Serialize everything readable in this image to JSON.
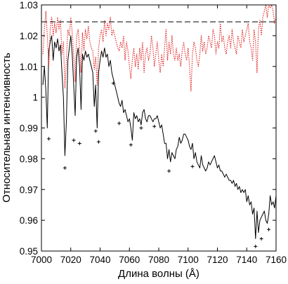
{
  "chart_data": {
    "type": "line",
    "xlabel": "Длина волны (Å)",
    "ylabel": "Относительная интенсивность",
    "xlim": [
      7000,
      7160
    ],
    "ylim": [
      0.95,
      1.03
    ],
    "x_ticks": [
      7000,
      7020,
      7040,
      7060,
      7080,
      7100,
      7120,
      7140,
      7160
    ],
    "x_tick_labels": [
      "7000",
      "7020",
      "7040",
      "7060",
      "7080",
      "7100",
      "7120",
      "7140",
      "7160"
    ],
    "y_ticks": [
      0.95,
      0.96,
      0.97,
      0.98,
      0.99,
      1.0,
      1.01,
      1.02,
      1.03
    ],
    "y_tick_labels": [
      "0.95",
      "0.96",
      "0.97",
      "0.98",
      "0.99",
      "1",
      "1.01",
      "1.02",
      "1.03"
    ],
    "grid": false,
    "legend": "none",
    "reference_line": {
      "y": 1.0245,
      "style": "dashed",
      "color": "#000000"
    },
    "series": [
      {
        "style": "solid",
        "color": "#000000",
        "x": [
          7001,
          7002,
          7003,
          7004,
          7005,
          7006,
          7007,
          7008,
          7009,
          7010,
          7011,
          7012,
          7013,
          7014,
          7015,
          7016,
          7017,
          7018,
          7019,
          7020,
          7021,
          7022,
          7023,
          7024,
          7025,
          7026,
          7027,
          7028,
          7029,
          7030,
          7031,
          7032,
          7033,
          7034,
          7035,
          7036,
          7037,
          7038,
          7039,
          7040,
          7041,
          7042,
          7043,
          7044,
          7045,
          7046,
          7047,
          7048,
          7049,
          7050,
          7051,
          7052,
          7053,
          7054,
          7055,
          7056,
          7057,
          7058,
          7059,
          7060,
          7061,
          7062,
          7063,
          7064,
          7065,
          7066,
          7067,
          7068,
          7069,
          7070,
          7071,
          7072,
          7073,
          7074,
          7075,
          7076,
          7077,
          7078,
          7079,
          7080,
          7081,
          7082,
          7083,
          7084,
          7085,
          7086,
          7087,
          7088,
          7089,
          7090,
          7091,
          7092,
          7093,
          7094,
          7095,
          7096,
          7097,
          7098,
          7099,
          7100,
          7101,
          7102,
          7103,
          7104,
          7105,
          7106,
          7107,
          7108,
          7109,
          7110,
          7111,
          7112,
          7113,
          7114,
          7115,
          7116,
          7117,
          7118,
          7119,
          7120,
          7121,
          7122,
          7123,
          7124,
          7125,
          7126,
          7127,
          7128,
          7129,
          7130,
          7131,
          7132,
          7133,
          7134,
          7135,
          7136,
          7137,
          7138,
          7139,
          7140,
          7141,
          7142,
          7143,
          7144,
          7145,
          7146,
          7147,
          7148,
          7149,
          7150,
          7151,
          7152,
          7153,
          7154,
          7155,
          7156,
          7157,
          7158,
          7159,
          7160
        ],
        "y": [
          1.004,
          1.01,
          1.002,
          0.99,
          1.015,
          1.018,
          1.02,
          1.012,
          1.018,
          1.016,
          1.019,
          1.015,
          1.017,
          1.008,
          1.0,
          0.981,
          0.992,
          1.012,
          1.016,
          1.02,
          1.014,
          1.004,
          0.994,
          1.013,
          1.016,
          1.01,
          0.996,
          1.014,
          1.012,
          1.015,
          1.013,
          1.014,
          1.012,
          1.01,
          1.008,
          0.997,
          1.004,
          0.99,
          1.008,
          1.012,
          1.015,
          1.013,
          1.016,
          1.013,
          1.014,
          1.01,
          1.012,
          1.008,
          1.006,
          1.004,
          1.002,
          1.0,
          0.998,
          0.997,
          0.999,
          0.995,
          0.996,
          0.994,
          0.992,
          0.993,
          0.99,
          0.986,
          0.995,
          0.993,
          0.994,
          0.992,
          0.993,
          0.991,
          0.995,
          0.996,
          0.993,
          0.992,
          0.994,
          0.994,
          0.993,
          0.992,
          0.993,
          0.993,
          0.994,
          0.992,
          0.99,
          0.991,
          0.988,
          0.985,
          0.985,
          0.98,
          0.983,
          0.979,
          0.982,
          0.981,
          0.98,
          0.983,
          0.984,
          0.987,
          0.985,
          0.986,
          0.988,
          0.988,
          0.987,
          0.986,
          0.984,
          0.983,
          0.985,
          0.98,
          0.982,
          0.979,
          0.978,
          0.977,
          0.981,
          0.978,
          0.977,
          0.976,
          0.977,
          0.979,
          0.978,
          0.979,
          0.98,
          0.981,
          0.979,
          0.977,
          0.978,
          0.976,
          0.976,
          0.975,
          0.974,
          0.975,
          0.974,
          0.973,
          0.973,
          0.972,
          0.973,
          0.971,
          0.972,
          0.97,
          0.971,
          0.969,
          0.97,
          0.969,
          0.97,
          0.966,
          0.968,
          0.965,
          0.966,
          0.962,
          0.964,
          0.954,
          0.963,
          0.956,
          0.96,
          0.961,
          0.962,
          0.963,
          0.96,
          0.959,
          0.962,
          0.968,
          0.965,
          0.966,
          0.964,
          0.968
        ]
      },
      {
        "style": "dotted",
        "color": "#e02020",
        "x": [
          7001,
          7002,
          7003,
          7004,
          7005,
          7006,
          7007,
          7008,
          7009,
          7010,
          7011,
          7012,
          7013,
          7014,
          7015,
          7016,
          7017,
          7018,
          7019,
          7020,
          7021,
          7022,
          7023,
          7024,
          7025,
          7026,
          7027,
          7028,
          7029,
          7030,
          7031,
          7032,
          7033,
          7034,
          7035,
          7036,
          7037,
          7038,
          7039,
          7040,
          7041,
          7042,
          7043,
          7044,
          7045,
          7046,
          7047,
          7048,
          7049,
          7050,
          7051,
          7052,
          7053,
          7054,
          7055,
          7056,
          7057,
          7058,
          7059,
          7060,
          7061,
          7062,
          7063,
          7064,
          7065,
          7066,
          7067,
          7068,
          7069,
          7070,
          7071,
          7072,
          7073,
          7074,
          7075,
          7076,
          7077,
          7078,
          7079,
          7080,
          7081,
          7082,
          7083,
          7084,
          7085,
          7086,
          7087,
          7088,
          7089,
          7090,
          7091,
          7092,
          7093,
          7094,
          7095,
          7096,
          7097,
          7098,
          7099,
          7100,
          7101,
          7102,
          7103,
          7104,
          7105,
          7106,
          7107,
          7108,
          7109,
          7110,
          7111,
          7112,
          7113,
          7114,
          7115,
          7116,
          7117,
          7118,
          7119,
          7120,
          7121,
          7122,
          7123,
          7124,
          7125,
          7126,
          7127,
          7128,
          7129,
          7130,
          7131,
          7132,
          7133,
          7134,
          7135,
          7136,
          7137,
          7138,
          7139,
          7140,
          7141,
          7142,
          7143,
          7144,
          7145,
          7146,
          7147,
          7148,
          7149,
          7150,
          7151,
          7152,
          7153,
          7154,
          7155,
          7156,
          7157,
          7158,
          7159,
          7160
        ],
        "y": [
          1.014,
          1.022,
          1.028,
          1.02,
          1.01,
          1.022,
          1.026,
          1.02,
          1.024,
          1.021,
          1.026,
          1.022,
          1.025,
          1.014,
          1.018,
          1.003,
          1.012,
          1.022,
          1.02,
          1.026,
          1.021,
          1.014,
          1.005,
          1.02,
          1.022,
          1.016,
          1.008,
          1.021,
          1.015,
          1.022,
          1.019,
          1.023,
          1.018,
          1.016,
          1.015,
          1.009,
          1.013,
          1.004,
          1.016,
          1.02,
          1.022,
          1.018,
          1.025,
          1.02,
          1.024,
          1.022,
          1.026,
          1.02,
          1.022,
          1.02,
          1.018,
          1.016,
          1.015,
          1.018,
          1.016,
          1.02,
          1.012,
          1.018,
          1.015,
          1.01,
          1.006,
          1.012,
          1.016,
          1.01,
          1.014,
          1.009,
          1.016,
          1.012,
          1.018,
          1.008,
          1.014,
          1.016,
          1.012,
          1.014,
          1.02,
          1.016,
          1.01,
          1.014,
          1.018,
          1.012,
          1.008,
          1.014,
          1.01,
          1.016,
          1.022,
          1.012,
          1.018,
          1.014,
          1.02,
          1.014,
          1.012,
          1.016,
          1.012,
          1.014,
          1.01,
          1.015,
          1.018,
          1.014,
          1.012,
          1.016,
          1.01,
          1.002,
          1.014,
          1.018,
          1.016,
          1.012,
          1.01,
          1.014,
          1.02,
          1.015,
          1.018,
          1.014,
          1.016,
          1.02,
          1.018,
          1.016,
          1.022,
          1.02,
          1.014,
          1.018,
          1.016,
          1.024,
          1.018,
          1.02,
          1.016,
          1.014,
          1.018,
          1.02,
          1.016,
          1.022,
          1.018,
          1.016,
          1.014,
          1.02,
          1.018,
          1.016,
          1.022,
          1.018,
          1.02,
          1.022,
          1.024,
          1.018,
          1.016,
          1.012,
          1.022,
          1.018,
          1.008,
          1.022,
          1.025,
          1.02,
          1.026,
          1.028,
          1.03,
          1.026,
          1.03,
          1.029,
          1.03,
          1.028,
          1.024,
          1.026
        ]
      },
      {
        "style": "markers",
        "marker": "+",
        "color": "#000000",
        "x": [
          7005,
          7016,
          7022,
          7026,
          7037,
          7039,
          7049,
          7053,
          7061,
          7068,
          7077,
          7087,
          7103,
          7146,
          7150,
          7155
        ],
        "y": [
          0.9865,
          0.977,
          0.986,
          0.985,
          0.989,
          0.9855,
          1.0045,
          0.9915,
          0.9845,
          0.99,
          0.9905,
          0.976,
          0.9775,
          0.9515,
          0.954,
          0.957
        ]
      }
    ]
  }
}
